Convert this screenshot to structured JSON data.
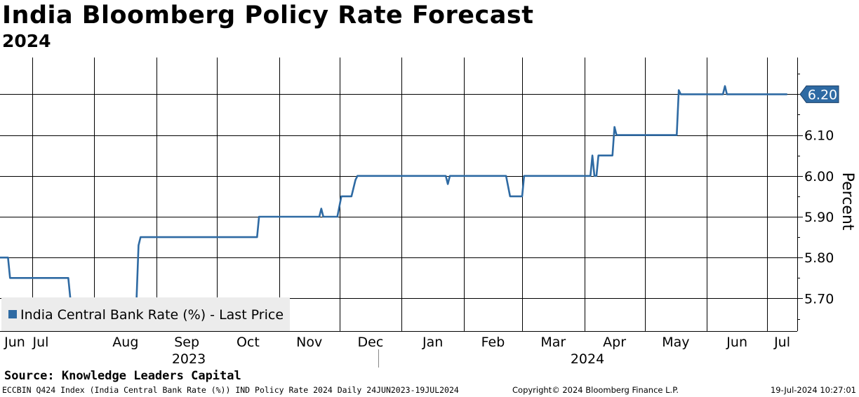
{
  "header": {
    "title": "India Bloomberg Policy Rate Forecast",
    "subtitle": "2024"
  },
  "footer": {
    "source": "Source: Knowledge Leaders Capital",
    "ticker_info": "ECCBIN Q424 Index (India Central Bank Rate (%)) IND Policy Rate 2024  Daily 24JUN2023-19JUL2024",
    "copyright": "Copyright© 2024 Bloomberg Finance L.P.",
    "timestamp": "19-Jul-2024 10:27:01"
  },
  "chart_data": {
    "type": "line",
    "title": "India Bloomberg Policy Rate Forecast",
    "subtitle": "2024",
    "ylabel": "Percent",
    "xlabel": "",
    "ylim": [
      5.62,
      6.29
    ],
    "yticks": [
      5.7,
      5.8,
      5.9,
      6.0,
      6.1,
      6.2
    ],
    "ytick_labels": [
      "5.70",
      "5.80",
      "5.90",
      "6.00",
      "6.10",
      "6.20"
    ],
    "grid": true,
    "x_range_days": [
      0,
      397
    ],
    "month_ticks": [
      {
        "label": "Jun",
        "day": 0
      },
      {
        "label": "Jul",
        "day": 16
      },
      {
        "label": "Aug",
        "day": 47
      },
      {
        "label": "Sep",
        "day": 78
      },
      {
        "label": "Oct",
        "day": 108
      },
      {
        "label": "Nov",
        "day": 139
      },
      {
        "label": "Dec",
        "day": 169
      },
      {
        "label": "Jan",
        "day": 200
      },
      {
        "label": "Feb",
        "day": 231
      },
      {
        "label": "Mar",
        "day": 260
      },
      {
        "label": "Apr",
        "day": 291
      },
      {
        "label": "May",
        "day": 321
      },
      {
        "label": "Jun",
        "day": 352
      },
      {
        "label": "Jul",
        "day": 382
      }
    ],
    "year_labels": [
      {
        "label": "2023",
        "from_day": 0,
        "to_day": 192
      },
      {
        "label": "2024",
        "from_day": 192,
        "to_day": 397
      }
    ],
    "legend": {
      "label": "India Central Bank Rate (%) - Last Price",
      "position": "bottom-left"
    },
    "last_value_label": "6.20",
    "series": [
      {
        "name": "India Central Bank Rate (%) - Last Price",
        "color": "#2e6aa3",
        "points": [
          [
            0,
            5.8
          ],
          [
            4,
            5.8
          ],
          [
            5,
            5.75
          ],
          [
            34,
            5.75
          ],
          [
            35,
            5.7
          ],
          [
            68,
            5.7
          ],
          [
            69,
            5.83
          ],
          [
            70,
            5.85
          ],
          [
            128,
            5.85
          ],
          [
            129,
            5.9
          ],
          [
            159,
            5.9
          ],
          [
            160,
            5.92
          ],
          [
            161,
            5.9
          ],
          [
            168,
            5.9
          ],
          [
            170,
            5.95
          ],
          [
            175,
            5.95
          ],
          [
            177,
            5.99
          ],
          [
            178,
            6.0
          ],
          [
            222,
            6.0
          ],
          [
            223,
            5.98
          ],
          [
            224,
            6.0
          ],
          [
            252,
            6.0
          ],
          [
            254,
            5.95
          ],
          [
            260,
            5.95
          ],
          [
            261,
            6.0
          ],
          [
            294,
            6.0
          ],
          [
            295,
            6.05
          ],
          [
            296,
            6.0
          ],
          [
            297,
            6.0
          ],
          [
            298,
            6.05
          ],
          [
            305,
            6.05
          ],
          [
            306,
            6.12
          ],
          [
            307,
            6.1
          ],
          [
            337,
            6.1
          ],
          [
            338,
            6.21
          ],
          [
            339,
            6.2
          ],
          [
            360,
            6.2
          ],
          [
            361,
            6.22
          ],
          [
            362,
            6.2
          ],
          [
            392,
            6.2
          ]
        ]
      }
    ]
  }
}
